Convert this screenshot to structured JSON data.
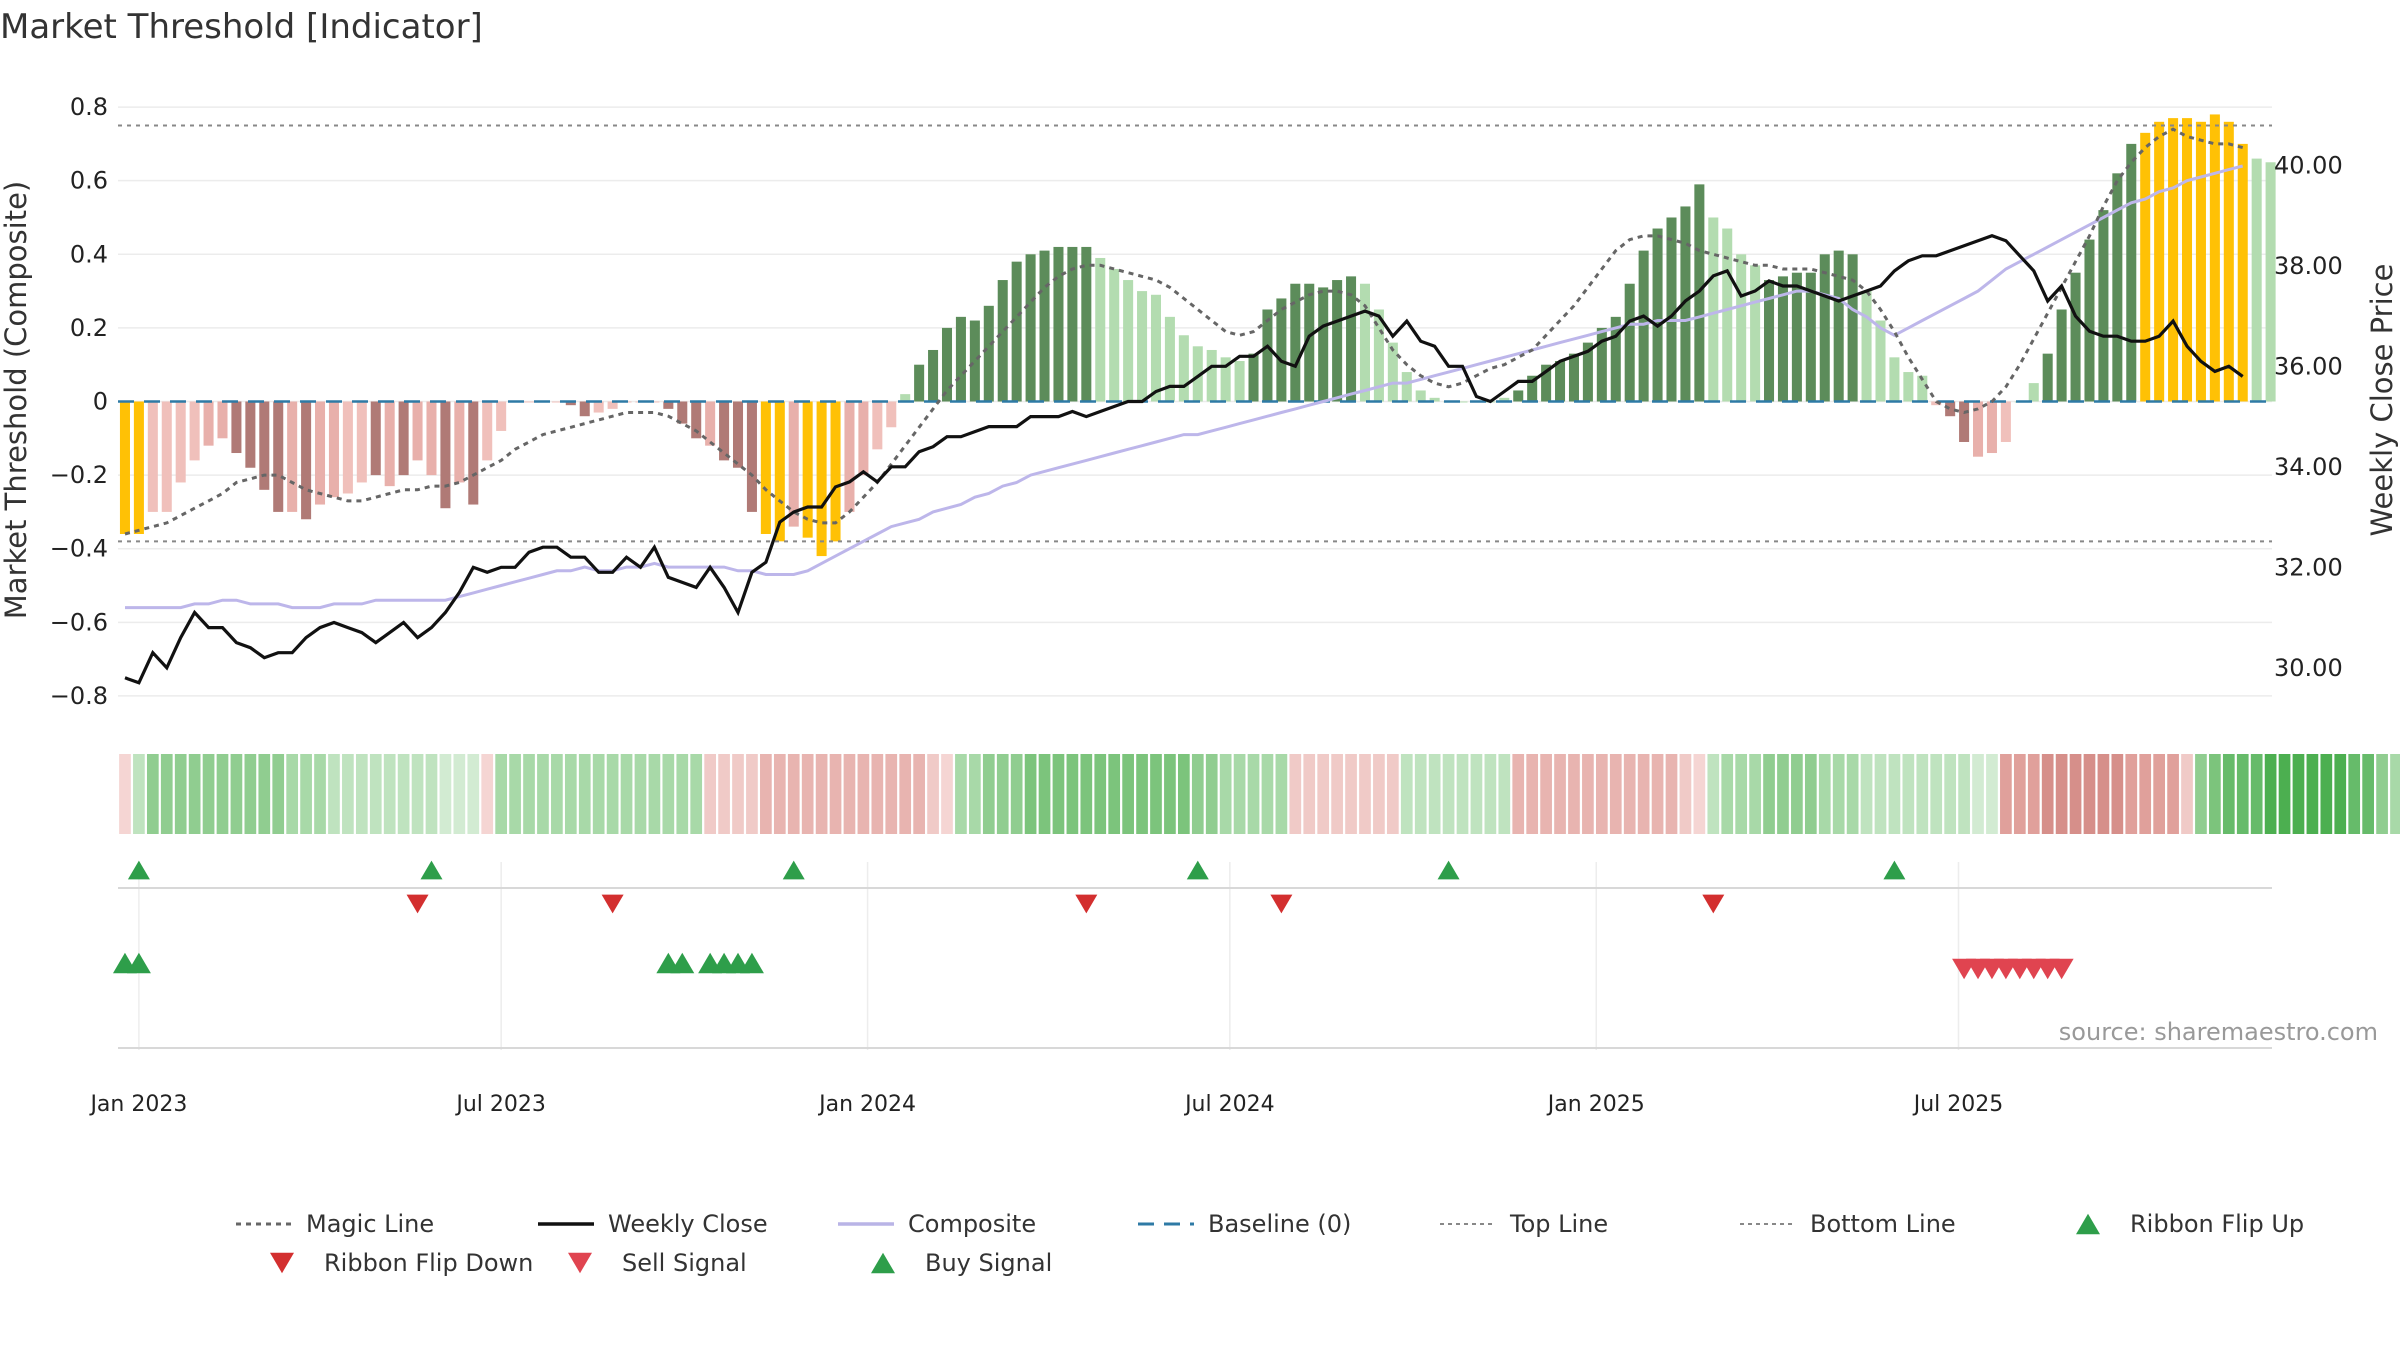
{
  "chart_data": {
    "type": "bar",
    "title": "Market Threshold [Indicator]",
    "ylabel": "Market Threshold (Composite)",
    "y2label": "Weekly Close Price",
    "ylim": [
      -0.86,
      0.86
    ],
    "y2lim": [
      29.0,
      41.6
    ],
    "yticks": [
      0.8,
      0.6,
      0.4,
      0.2,
      0,
      -0.2,
      -0.4,
      -0.6,
      -0.8
    ],
    "ytick_labels": [
      "0.8",
      "0.6",
      "0.4",
      "0.2",
      "0",
      "−0.2",
      "−0.4",
      "−0.6",
      "−0.8"
    ],
    "y2ticks": [
      40,
      38,
      36,
      34,
      32,
      30
    ],
    "y2tick_labels": [
      "40.00",
      "38.00",
      "36.00",
      "34.00",
      "32.00",
      "30.00"
    ],
    "x_start": "2022-12-26",
    "xticks": [
      {
        "label": "Jan 2023",
        "week": 1
      },
      {
        "label": "Jul 2023",
        "week": 27
      },
      {
        "label": "Jan 2024",
        "week": 53.3
      },
      {
        "label": "Jul 2024",
        "week": 79.3
      },
      {
        "label": "Jan 2025",
        "week": 105.6
      },
      {
        "label": "Jul 2025",
        "week": 131.6
      }
    ],
    "top_line": 0.75,
    "bottom_line": -0.38,
    "composite_bars": [
      -0.36,
      -0.36,
      -0.3,
      -0.3,
      -0.22,
      -0.16,
      -0.12,
      -0.1,
      -0.14,
      -0.18,
      -0.24,
      -0.3,
      -0.3,
      -0.32,
      -0.28,
      -0.26,
      -0.25,
      -0.22,
      -0.2,
      -0.23,
      -0.2,
      -0.16,
      -0.2,
      -0.29,
      -0.22,
      -0.28,
      -0.16,
      -0.08,
      0,
      0,
      0,
      0,
      -0.01,
      -0.04,
      -0.03,
      -0.02,
      0,
      0,
      0,
      -0.02,
      -0.06,
      -0.1,
      -0.12,
      -0.16,
      -0.18,
      -0.3,
      -0.36,
      -0.38,
      -0.34,
      -0.37,
      -0.42,
      -0.38,
      -0.3,
      -0.2,
      -0.13,
      -0.07,
      0.02,
      0.1,
      0.14,
      0.2,
      0.23,
      0.22,
      0.26,
      0.33,
      0.38,
      0.4,
      0.41,
      0.42,
      0.42,
      0.42,
      0.39,
      0.36,
      0.33,
      0.3,
      0.29,
      0.23,
      0.18,
      0.15,
      0.14,
      0.12,
      0.11,
      0.13,
      0.25,
      0.28,
      0.32,
      0.32,
      0.31,
      0.33,
      0.34,
      0.32,
      0.25,
      0.16,
      0.08,
      0.03,
      0.01,
      0,
      0,
      0,
      0,
      0.01,
      0.03,
      0.07,
      0.1,
      0.11,
      0.13,
      0.16,
      0.2,
      0.23,
      0.32,
      0.41,
      0.47,
      0.5,
      0.53,
      0.59,
      0.5,
      0.47,
      0.4,
      0.37,
      0.33,
      0.34,
      0.35,
      0.35,
      0.4,
      0.41,
      0.4,
      0.3,
      0.22,
      0.12,
      0.08,
      0.07,
      -0.01,
      -0.04,
      -0.11,
      -0.15,
      -0.14,
      -0.11,
      0,
      0.05,
      0.13,
      0.25,
      0.35,
      0.44,
      0.52,
      0.62,
      0.7,
      0.73,
      0.76,
      0.77,
      0.77,
      0.76,
      0.78,
      0.76,
      0.7,
      0.66,
      0.65
    ],
    "bar_colors": [
      "#ffc105",
      "#ffc105",
      "#f0c0bb",
      "#f0c0bb",
      "#f0c0bb",
      "#f0c0bb",
      "#e8b0ab",
      "#e8b0ab",
      "#b07a76",
      "#b07a76",
      "#b07a76",
      "#b07a76",
      "#e8b0ab",
      "#b07a76",
      "#e8b0ab",
      "#e8b0ab",
      "#f0c0bb",
      "#f0c0bb",
      "#b07a76",
      "#e8b0ab",
      "#b07a76",
      "#e8b0ab",
      "#e8b0ab",
      "#b07a76",
      "#e8b0ab",
      "#b07a76",
      "#f0c0bb",
      "#f0c0bb",
      "#f0c0bb",
      "#f0c0bb",
      "#f0c0bb",
      "#f0c0bb",
      "#b07a76",
      "#b07a76",
      "#f0c0bb",
      "#f0c0bb",
      "#f0c0bb",
      "#f0c0bb",
      "#f0c0bb",
      "#b07a76",
      "#b07a76",
      "#b07a76",
      "#e8b0ab",
      "#b07a76",
      "#b07a76",
      "#b07a76",
      "#ffc105",
      "#ffc105",
      "#e8b0ab",
      "#ffc105",
      "#ffc105",
      "#ffc105",
      "#e8b0ab",
      "#e8b0ab",
      "#f0c0bb",
      "#f0c0bb",
      "#b3dcb0",
      "#5c8c5a",
      "#5c8c5a",
      "#5c8c5a",
      "#5c8c5a",
      "#5c8c5a",
      "#5c8c5a",
      "#5c8c5a",
      "#5c8c5a",
      "#5c8c5a",
      "#5c8c5a",
      "#5c8c5a",
      "#5c8c5a",
      "#5c8c5a",
      "#b3dcb0",
      "#b3dcb0",
      "#b3dcb0",
      "#b3dcb0",
      "#b3dcb0",
      "#b3dcb0",
      "#b3dcb0",
      "#b3dcb0",
      "#b3dcb0",
      "#b3dcb0",
      "#b3dcb0",
      "#5c8c5a",
      "#5c8c5a",
      "#5c8c5a",
      "#5c8c5a",
      "#5c8c5a",
      "#5c8c5a",
      "#5c8c5a",
      "#5c8c5a",
      "#b3dcb0",
      "#b3dcb0",
      "#b3dcb0",
      "#b3dcb0",
      "#b3dcb0",
      "#b3dcb0",
      "#b3dcb0",
      "#b3dcb0",
      "#b3dcb0",
      "#b3dcb0",
      "#b3dcb0",
      "#5c8c5a",
      "#5c8c5a",
      "#5c8c5a",
      "#5c8c5a",
      "#5c8c5a",
      "#5c8c5a",
      "#5c8c5a",
      "#5c8c5a",
      "#5c8c5a",
      "#5c8c5a",
      "#5c8c5a",
      "#5c8c5a",
      "#5c8c5a",
      "#5c8c5a",
      "#b3dcb0",
      "#b3dcb0",
      "#b3dcb0",
      "#b3dcb0",
      "#5c8c5a",
      "#5c8c5a",
      "#5c8c5a",
      "#5c8c5a",
      "#5c8c5a",
      "#5c8c5a",
      "#5c8c5a",
      "#b3dcb0",
      "#b3dcb0",
      "#b3dcb0",
      "#b3dcb0",
      "#b3dcb0",
      "#f0c0bb",
      "#b07a76",
      "#b07a76",
      "#e8b0ab",
      "#e8b0ab",
      "#f0c0bb",
      "#b3dcb0",
      "#b3dcb0",
      "#5c8c5a",
      "#5c8c5a",
      "#5c8c5a",
      "#5c8c5a",
      "#5c8c5a",
      "#5c8c5a",
      "#5c8c5a",
      "#ffc105",
      "#ffc105",
      "#ffc105",
      "#ffc105",
      "#ffc105",
      "#ffc105",
      "#ffc105",
      "#ffc105",
      "#b3dcb0",
      "#b3dcb0",
      "#b3dcb0"
    ],
    "weekly_close": [
      29.8,
      29.7,
      30.3,
      30.0,
      30.6,
      31.1,
      30.8,
      30.8,
      30.5,
      30.4,
      30.2,
      30.3,
      30.3,
      30.6,
      30.8,
      30.9,
      30.8,
      30.7,
      30.5,
      30.7,
      30.9,
      30.6,
      30.8,
      31.1,
      31.5,
      32.0,
      31.9,
      32.0,
      32.0,
      32.3,
      32.4,
      32.4,
      32.2,
      32.2,
      31.9,
      31.9,
      32.2,
      32.0,
      32.4,
      31.8,
      31.7,
      31.6,
      32.0,
      31.6,
      31.1,
      31.9,
      32.1,
      32.9,
      33.1,
      33.2,
      33.2,
      33.6,
      33.7,
      33.9,
      33.7,
      34.0,
      34.0,
      34.3,
      34.4,
      34.6,
      34.6,
      34.7,
      34.8,
      34.8,
      34.8,
      35.0,
      35.0,
      35.0,
      35.1,
      35.0,
      35.1,
      35.2,
      35.3,
      35.3,
      35.5,
      35.6,
      35.6,
      35.8,
      36.0,
      36.0,
      36.2,
      36.2,
      36.4,
      36.1,
      36.0,
      36.6,
      36.8,
      36.9,
      37.0,
      37.1,
      37.0,
      36.6,
      36.9,
      36.5,
      36.4,
      36.0,
      36.0,
      35.4,
      35.3,
      35.5,
      35.7,
      35.7,
      35.9,
      36.1,
      36.2,
      36.3,
      36.5,
      36.6,
      36.9,
      37.0,
      36.8,
      37.0,
      37.3,
      37.5,
      37.8,
      37.9,
      37.4,
      37.5,
      37.7,
      37.6,
      37.6,
      37.5,
      37.4,
      37.3,
      37.4,
      37.5,
      37.6,
      37.9,
      38.1,
      38.2,
      38.2,
      38.3,
      38.4,
      38.5,
      38.6,
      38.5,
      38.2,
      37.9,
      37.3,
      37.6,
      37.0,
      36.7,
      36.6,
      36.6,
      36.5,
      36.5,
      36.6,
      36.9,
      36.4,
      36.1,
      35.9,
      36.0,
      35.8
    ],
    "composite_line": [
      -0.56,
      -0.56,
      -0.56,
      -0.56,
      -0.56,
      -0.55,
      -0.55,
      -0.54,
      -0.54,
      -0.55,
      -0.55,
      -0.55,
      -0.56,
      -0.56,
      -0.56,
      -0.55,
      -0.55,
      -0.55,
      -0.54,
      -0.54,
      -0.54,
      -0.54,
      -0.54,
      -0.54,
      -0.53,
      -0.52,
      -0.51,
      -0.5,
      -0.49,
      -0.48,
      -0.47,
      -0.46,
      -0.46,
      -0.45,
      -0.46,
      -0.46,
      -0.45,
      -0.45,
      -0.44,
      -0.45,
      -0.45,
      -0.45,
      -0.45,
      -0.45,
      -0.46,
      -0.46,
      -0.47,
      -0.47,
      -0.47,
      -0.46,
      -0.44,
      -0.42,
      -0.4,
      -0.38,
      -0.36,
      -0.34,
      -0.33,
      -0.32,
      -0.3,
      -0.29,
      -0.28,
      -0.26,
      -0.25,
      -0.23,
      -0.22,
      -0.2,
      -0.19,
      -0.18,
      -0.17,
      -0.16,
      -0.15,
      -0.14,
      -0.13,
      -0.12,
      -0.11,
      -0.1,
      -0.09,
      -0.09,
      -0.08,
      -0.07,
      -0.06,
      -0.05,
      -0.04,
      -0.03,
      -0.02,
      -0.01,
      0,
      0.01,
      0.02,
      0.03,
      0.04,
      0.05,
      0.05,
      0.06,
      0.07,
      0.08,
      0.09,
      0.1,
      0.11,
      0.12,
      0.13,
      0.14,
      0.15,
      0.16,
      0.17,
      0.18,
      0.19,
      0.2,
      0.21,
      0.21,
      0.22,
      0.22,
      0.22,
      0.23,
      0.24,
      0.25,
      0.26,
      0.27,
      0.28,
      0.29,
      0.3,
      0.3,
      0.29,
      0.28,
      0.25,
      0.23,
      0.2,
      0.18,
      0.2,
      0.22,
      0.24,
      0.26,
      0.28,
      0.3,
      0.33,
      0.36,
      0.38,
      0.4,
      0.42,
      0.44,
      0.46,
      0.48,
      0.5,
      0.52,
      0.54,
      0.55,
      0.57,
      0.58,
      0.6,
      0.61,
      0.62,
      0.63,
      0.64
    ],
    "magic_line": [
      -0.36,
      -0.35,
      -0.34,
      -0.33,
      -0.31,
      -0.29,
      -0.27,
      -0.25,
      -0.22,
      -0.21,
      -0.2,
      -0.2,
      -0.22,
      -0.24,
      -0.25,
      -0.26,
      -0.27,
      -0.27,
      -0.26,
      -0.25,
      -0.24,
      -0.24,
      -0.23,
      -0.23,
      -0.22,
      -0.2,
      -0.18,
      -0.16,
      -0.13,
      -0.11,
      -0.09,
      -0.08,
      -0.07,
      -0.06,
      -0.05,
      -0.04,
      -0.03,
      -0.03,
      -0.03,
      -0.04,
      -0.06,
      -0.08,
      -0.11,
      -0.14,
      -0.17,
      -0.2,
      -0.24,
      -0.27,
      -0.3,
      -0.32,
      -0.33,
      -0.33,
      -0.3,
      -0.26,
      -0.22,
      -0.17,
      -0.12,
      -0.07,
      -0.02,
      0.03,
      0.07,
      0.11,
      0.15,
      0.19,
      0.23,
      0.27,
      0.31,
      0.34,
      0.36,
      0.37,
      0.37,
      0.36,
      0.35,
      0.34,
      0.33,
      0.31,
      0.28,
      0.25,
      0.22,
      0.19,
      0.18,
      0.19,
      0.22,
      0.25,
      0.27,
      0.29,
      0.3,
      0.3,
      0.29,
      0.26,
      0.2,
      0.14,
      0.1,
      0.07,
      0.05,
      0.04,
      0.05,
      0.07,
      0.09,
      0.1,
      0.12,
      0.14,
      0.18,
      0.22,
      0.26,
      0.31,
      0.36,
      0.41,
      0.44,
      0.45,
      0.45,
      0.44,
      0.43,
      0.41,
      0.4,
      0.39,
      0.38,
      0.37,
      0.37,
      0.36,
      0.36,
      0.36,
      0.35,
      0.34,
      0.33,
      0.3,
      0.25,
      0.19,
      0.12,
      0.06,
      0,
      -0.02,
      -0.03,
      -0.02,
      0,
      0.04,
      0.1,
      0.17,
      0.24,
      0.31,
      0.38,
      0.45,
      0.53,
      0.6,
      0.65,
      0.69,
      0.72,
      0.74,
      0.72,
      0.71,
      0.7,
      0.7,
      0.69
    ],
    "ribbon_colors": [
      "#f5d5d3",
      "#bfe3bf",
      "#90cd90",
      "#90cd90",
      "#90cd90",
      "#90cd90",
      "#90cd90",
      "#90cd90",
      "#90cd90",
      "#90cd90",
      "#90cd90",
      "#90cd90",
      "#a8d9a8",
      "#a8d9a8",
      "#a8d9a8",
      "#bfe3bf",
      "#bfe3bf",
      "#bfe3bf",
      "#bfe3bf",
      "#bfe3bf",
      "#bfe3bf",
      "#bfe3bf",
      "#bfe3bf",
      "#d2ebd2",
      "#d2ebd2",
      "#d2ebd2",
      "#f5d5d3",
      "#a8d9a8",
      "#a8d9a8",
      "#a8d9a8",
      "#a8d9a8",
      "#a8d9a8",
      "#a8d9a8",
      "#a8d9a8",
      "#a8d9a8",
      "#a8d9a8",
      "#a8d9a8",
      "#a8d9a8",
      "#a8d9a8",
      "#a8d9a8",
      "#a8d9a8",
      "#a8d9a8",
      "#f0cac7",
      "#f0cac7",
      "#f0cac7",
      "#f0cac7",
      "#e8b4b0",
      "#e8b4b0",
      "#e8b4b0",
      "#e8b4b0",
      "#e8b4b0",
      "#e8b4b0",
      "#e8b4b0",
      "#e8b4b0",
      "#e8b4b0",
      "#e8b4b0",
      "#e8b4b0",
      "#e8b4b0",
      "#f0cac7",
      "#f5d5d3",
      "#a8d9a8",
      "#a8d9a8",
      "#90cd90",
      "#90cd90",
      "#90cd90",
      "#7cc47c",
      "#7cc47c",
      "#7cc47c",
      "#7cc47c",
      "#7cc47c",
      "#7cc47c",
      "#7cc47c",
      "#7cc47c",
      "#7cc47c",
      "#7cc47c",
      "#7cc47c",
      "#7cc47c",
      "#90cd90",
      "#90cd90",
      "#a8d9a8",
      "#a8d9a8",
      "#a8d9a8",
      "#a8d9a8",
      "#a8d9a8",
      "#f0cac7",
      "#f0cac7",
      "#f0cac7",
      "#f0cac7",
      "#f0cac7",
      "#f0cac7",
      "#f0cac7",
      "#f0cac7",
      "#bfe3bf",
      "#bfe3bf",
      "#bfe3bf",
      "#bfe3bf",
      "#bfe3bf",
      "#bfe3bf",
      "#bfe3bf",
      "#bfe3bf",
      "#e8b4b0",
      "#e8b4b0",
      "#e8b4b0",
      "#e8b4b0",
      "#e8b4b0",
      "#e8b4b0",
      "#e8b4b0",
      "#e8b4b0",
      "#e8b4b0",
      "#e8b4b0",
      "#e8b4b0",
      "#e8b4b0",
      "#f0cac7",
      "#f5d5d3",
      "#bfe3bf",
      "#a8d9a8",
      "#a8d9a8",
      "#a8d9a8",
      "#90cd90",
      "#90cd90",
      "#90cd90",
      "#90cd90",
      "#a8d9a8",
      "#a8d9a8",
      "#a8d9a8",
      "#bfe3bf",
      "#bfe3bf",
      "#bfe3bf",
      "#bfe3bf",
      "#bfe3bf",
      "#bfe3bf",
      "#bfe3bf",
      "#bfe3bf",
      "#d2ebd2",
      "#d2ebd2",
      "#e0a09b",
      "#e0a09b",
      "#e0a09b",
      "#d68f8a",
      "#d68f8a",
      "#d68f8a",
      "#d68f8a",
      "#d68f8a",
      "#d68f8a",
      "#e0a09b",
      "#e0a09b",
      "#e0a09b",
      "#e0a09b",
      "#f0cac7",
      "#90cd90",
      "#7cc47c",
      "#66bb6a",
      "#66bb6a",
      "#66bb6a",
      "#4caf50",
      "#4caf50",
      "#4caf50",
      "#4caf50",
      "#4caf50",
      "#4caf50",
      "#66bb6a",
      "#66bb6a",
      "#90cd90",
      "#a8d9a8"
    ],
    "ribbon_flip_up_weeks": [
      1,
      22,
      48,
      77,
      95,
      127
    ],
    "ribbon_flip_down_weeks": [
      21,
      35,
      69,
      83,
      114
    ],
    "buy_signal_weeks": [
      0,
      1,
      39,
      40,
      42,
      43,
      44,
      45
    ],
    "sell_signal_weeks": [
      132,
      133,
      134,
      135,
      136,
      137,
      138,
      139
    ],
    "legend": [
      {
        "label": "Magic Line",
        "symbol": "dotted",
        "color": "#666666"
      },
      {
        "label": "Weekly Close",
        "symbol": "line",
        "color": "#111111"
      },
      {
        "label": "Composite",
        "symbol": "line",
        "color": "#b9b4e6"
      },
      {
        "label": "Baseline (0)",
        "symbol": "dashed",
        "color": "#2e7aa5"
      },
      {
        "label": "Top Line",
        "symbol": "dotted-thin",
        "color": "#888888"
      },
      {
        "label": "Bottom Line",
        "symbol": "dotted-thin",
        "color": "#888888"
      },
      {
        "label": "Ribbon Flip Up",
        "symbol": "triangle-up",
        "color": "#2e9e4a"
      },
      {
        "label": "Ribbon Flip Down",
        "symbol": "triangle-down",
        "color": "#d32f2f"
      },
      {
        "label": "Sell Signal",
        "symbol": "triangle-down",
        "color": "#e04450"
      },
      {
        "label": "Buy Signal",
        "symbol": "triangle-up",
        "color": "#2e9e4a"
      }
    ],
    "legend_placement": "bottom",
    "source": "source: sharemaestro.com"
  }
}
